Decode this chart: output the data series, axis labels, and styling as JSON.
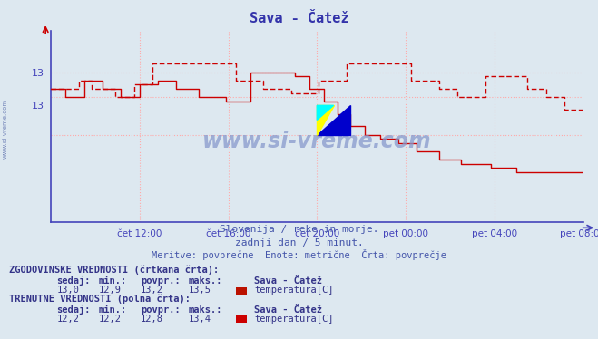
{
  "title": "Sava - Čatež",
  "title_color": "#3333aa",
  "bg_color": "#dde8f0",
  "plot_bg_color": "#dde8f0",
  "axis_color": "#4444bb",
  "grid_color": "#ffaaaa",
  "line_color": "#cc0000",
  "xlim_min": 0,
  "xlim_max": 288,
  "ylim_min": 11.6,
  "ylim_max": 13.9,
  "ytick_vals": [
    13.4,
    13.0
  ],
  "ytick_labs": [
    "13",
    "13"
  ],
  "xlabel_ticks": [
    48,
    96,
    144,
    192,
    240,
    288
  ],
  "xlabel_labels": [
    "čet 12:00",
    "čet 16:00",
    "čet 20:00",
    "pet 00:00",
    "pet 04:00",
    "pet 08:00"
  ],
  "hgrid_vals": [
    13.4,
    13.1,
    12.65
  ],
  "subtitle1": "Slovenija / reke in morje.",
  "subtitle2": "zadnji dan / 5 minut.",
  "subtitle3": "Meritve: povprečne  Enote: metrične  Črta: povprečje",
  "subtitle_color": "#4455aa",
  "table_title1": "ZGODOVINSKE VREDNOSTI (črtkana črta):",
  "table_title2": "TRENUTNE VREDNOSTI (polna črta):",
  "table_color": "#333388",
  "hist_sedaj": "13,0",
  "hist_min": "12,9",
  "hist_povpr": "13,2",
  "hist_maks": "13,5",
  "curr_sedaj": "12,2",
  "curr_min": "12,2",
  "curr_povpr": "12,8",
  "curr_maks": "13,4",
  "station": "Sava - Čatež",
  "param": "temperatura[C]",
  "legend_color1": "#bb1100",
  "legend_color2": "#cc0000",
  "watermark": "www.si-vreme.com",
  "watermark_color": "#7788bb",
  "sidebar_text": "www.si-vreme.com",
  "sidebar_color": "#7788bb"
}
